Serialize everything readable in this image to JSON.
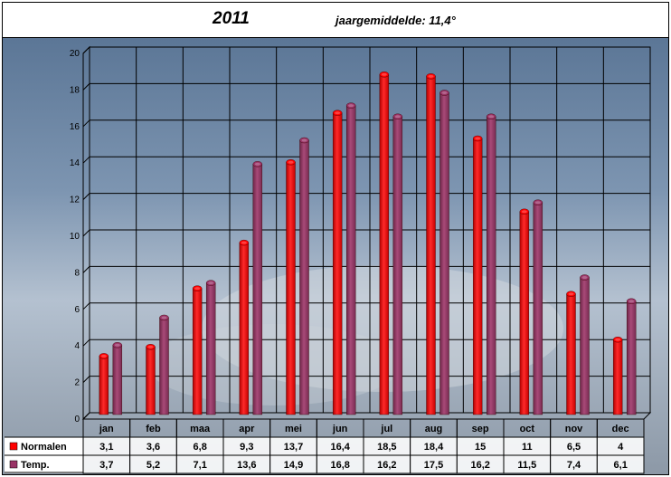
{
  "title": {
    "year": "2011",
    "subtitle": "jaargemiddelde:  11,4°"
  },
  "colors": {
    "normalen": "#ff0000",
    "temp": "#993366",
    "grid": "#000000"
  },
  "chart_data": {
    "type": "bar",
    "categories": [
      "jan",
      "feb",
      "maa",
      "apr",
      "mei",
      "jun",
      "jul",
      "aug",
      "sep",
      "oct",
      "nov",
      "dec"
    ],
    "series": [
      {
        "name": "Normalen",
        "values": [
          3.1,
          3.6,
          6.8,
          9.3,
          13.7,
          16.4,
          18.5,
          18.4,
          15,
          11,
          6.5,
          4
        ],
        "labels": [
          "3,1",
          "3,6",
          "6,8",
          "9,3",
          "13,7",
          "16,4",
          "18,5",
          "18,4",
          "15",
          "11",
          "6,5",
          "4"
        ]
      },
      {
        "name": "Temp.",
        "values": [
          3.7,
          5.2,
          7.1,
          13.6,
          14.9,
          16.8,
          16.2,
          17.5,
          16.2,
          11.5,
          7.4,
          6.1
        ],
        "labels": [
          "3,7",
          "5,2",
          "7,1",
          "13,6",
          "14,9",
          "16,8",
          "16,2",
          "17,5",
          "16,2",
          "11,5",
          "7,4",
          "6,1"
        ]
      }
    ],
    "ylim": [
      0,
      20
    ],
    "yticks": [
      "0",
      "2",
      "4",
      "6",
      "8",
      "10",
      "12",
      "14",
      "16",
      "18",
      "20"
    ],
    "grid": true,
    "legend": "data-table"
  }
}
